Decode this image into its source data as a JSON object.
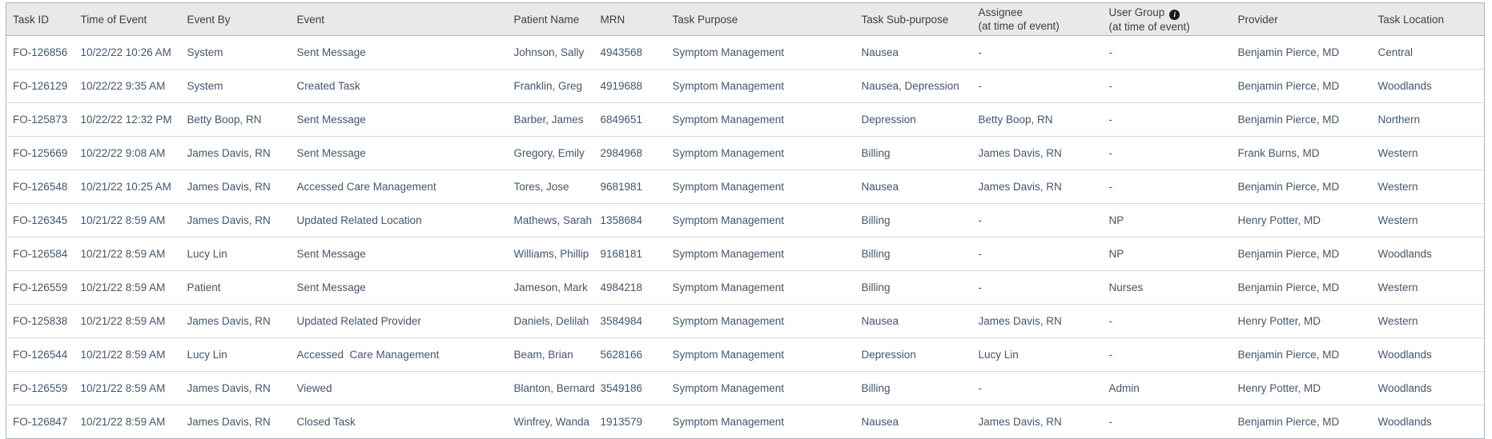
{
  "table": {
    "columns": [
      {
        "key": "task_id",
        "label": "Task ID"
      },
      {
        "key": "time_of_event",
        "label": "Time of Event"
      },
      {
        "key": "event_by",
        "label": "Event By"
      },
      {
        "key": "event",
        "label": "Event"
      },
      {
        "key": "patient_name",
        "label": "Patient Name"
      },
      {
        "key": "mrn",
        "label": "MRN"
      },
      {
        "key": "task_purpose",
        "label": "Task Purpose"
      },
      {
        "key": "task_sub_purpose",
        "label": "Task Sub-purpose"
      },
      {
        "key": "assignee",
        "label": "Assignee",
        "sublabel": "(at time of event)"
      },
      {
        "key": "user_group",
        "label": "User Group",
        "sublabel": "(at time of event)",
        "has_info_icon": true
      },
      {
        "key": "provider",
        "label": "Provider"
      },
      {
        "key": "task_location",
        "label": "Task Location"
      }
    ],
    "rows": [
      {
        "task_id": "FO-126856",
        "time_of_event": "10/22/22 10:26 AM",
        "event_by": "System",
        "event": "Sent Message",
        "patient_name": "Johnson, Sally",
        "mrn": "4943568",
        "task_purpose": "Symptom Management",
        "task_sub_purpose": "Nausea",
        "assignee": "-",
        "user_group": "-",
        "provider": "Benjamin Pierce, MD",
        "task_location": "Central"
      },
      {
        "task_id": "FO-126129",
        "time_of_event": "10/22/22 9:35 AM",
        "event_by": "System",
        "event": "Created Task",
        "patient_name": "Franklin, Greg",
        "mrn": "4919688",
        "task_purpose": "Symptom Management",
        "task_sub_purpose": "Nausea, Depression",
        "assignee": "-",
        "user_group": "-",
        "provider": "Benjamin Pierce, MD",
        "task_location": "Woodlands"
      },
      {
        "task_id": "FO-125873",
        "time_of_event": "10/22/22 12:32 PM",
        "event_by": "Betty Boop, RN",
        "event": "Sent Message",
        "patient_name": "Barber, James",
        "mrn": "6849651",
        "task_purpose": "Symptom Management",
        "task_sub_purpose": "Depression",
        "assignee": "Betty Boop, RN",
        "user_group": "-",
        "provider": "Benjamin Pierce, MD",
        "task_location": "Northern"
      },
      {
        "task_id": "FO-125669",
        "time_of_event": "10/22/22 9:08 AM",
        "event_by": "James Davis, RN",
        "event": "Sent Message",
        "patient_name": "Gregory, Emily",
        "mrn": "2984968",
        "task_purpose": "Symptom Management",
        "task_sub_purpose": "Billing",
        "assignee": "James Davis, RN",
        "user_group": "-",
        "provider": "Frank Burns, MD",
        "task_location": "Western"
      },
      {
        "task_id": "FO-126548",
        "time_of_event": "10/21/22 10:25 AM",
        "event_by": "James Davis, RN",
        "event": "Accessed Care Management",
        "patient_name": "Tores, Jose",
        "mrn": "9681981",
        "task_purpose": "Symptom Management",
        "task_sub_purpose": "Nausea",
        "assignee": "James Davis, RN",
        "user_group": "-",
        "provider": "Benjamin Pierce, MD",
        "task_location": "Western"
      },
      {
        "task_id": "FO-126345",
        "time_of_event": "10/21/22 8:59 AM",
        "event_by": "James Davis, RN",
        "event": "Updated Related Location",
        "patient_name": "Mathews, Sarah",
        "mrn": "1358684",
        "task_purpose": "Symptom Management",
        "task_sub_purpose": "Billing",
        "assignee": "-",
        "user_group": "NP",
        "provider": "Henry Potter, MD",
        "task_location": "Western"
      },
      {
        "task_id": "FO-126584",
        "time_of_event": "10/21/22 8:59 AM",
        "event_by": "Lucy Lin",
        "event": "Sent Message",
        "patient_name": "Williams, Phillip",
        "mrn": "9168181",
        "task_purpose": "Symptom Management",
        "task_sub_purpose": "Billing",
        "assignee": "-",
        "user_group": "NP",
        "provider": "Benjamin Pierce, MD",
        "task_location": "Woodlands"
      },
      {
        "task_id": "FO-126559",
        "time_of_event": "10/21/22 8:59 AM",
        "event_by": "Patient",
        "event": "Sent Message",
        "patient_name": "Jameson, Mark",
        "mrn": "4984218",
        "task_purpose": "Symptom Management",
        "task_sub_purpose": "Billing",
        "assignee": "-",
        "user_group": "Nurses",
        "provider": "Benjamin Pierce, MD",
        "task_location": "Western"
      },
      {
        "task_id": "FO-125838",
        "time_of_event": "10/21/22 8:59 AM",
        "event_by": "James Davis, RN",
        "event": "Updated Related Provider",
        "patient_name": "Daniels, Delilah",
        "mrn": "3584984",
        "task_purpose": "Symptom Management",
        "task_sub_purpose": "Nausea",
        "assignee": "James Davis, RN",
        "user_group": "-",
        "provider": "Henry Potter, MD",
        "task_location": "Western"
      },
      {
        "task_id": "FO-126544",
        "time_of_event": "10/21/22 8:59 AM",
        "event_by": "Lucy Lin",
        "event": "Accessed  Care Management",
        "patient_name": "Beam, Brian",
        "mrn": "5628166",
        "task_purpose": "Symptom Management",
        "task_sub_purpose": "Depression",
        "assignee": "Lucy Lin",
        "user_group": "-",
        "provider": "Benjamin Pierce, MD",
        "task_location": "Woodlands"
      },
      {
        "task_id": "FO-126559",
        "time_of_event": "10/21/22 8:59 AM",
        "event_by": "James Davis, RN",
        "event": "Viewed",
        "patient_name": "Blanton, Bernard",
        "mrn": "3549186",
        "task_purpose": "Symptom Management",
        "task_sub_purpose": "Billing",
        "assignee": "-",
        "user_group": "Admin",
        "provider": "Henry Potter, MD",
        "task_location": "Woodlands"
      },
      {
        "task_id": "FO-126847",
        "time_of_event": "10/21/22 8:59 AM",
        "event_by": "James Davis, RN",
        "event": "Closed Task",
        "patient_name": "Winfrey, Wanda",
        "mrn": "1913579",
        "task_purpose": "Symptom Management",
        "task_sub_purpose": "Nausea",
        "assignee": "James Davis, RN",
        "user_group": "-",
        "provider": "Benjamin Pierce, MD",
        "task_location": "Woodlands"
      }
    ]
  },
  "icons": {
    "info": "i"
  },
  "colors": {
    "header_bg": "#e8e9ea",
    "header_text": "#3c4043",
    "body_text": "#44566b",
    "row_border": "#d3d9dd",
    "outer_border": "#a9b4bc",
    "info_icon_bg": "#18191a"
  }
}
